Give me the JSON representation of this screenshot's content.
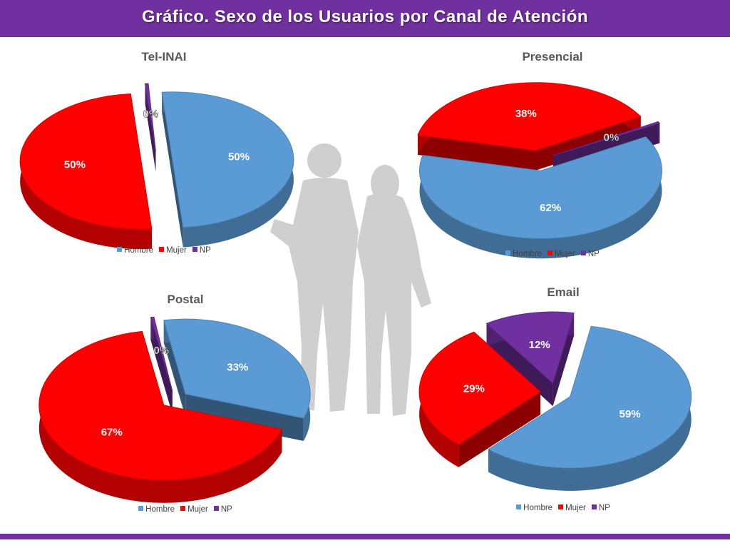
{
  "page": {
    "title": "Gráfico. Sexo de los Usuarios por Canal de Atención"
  },
  "colors": {
    "header": "#7030a0",
    "hombre": "#5b9bd5",
    "mujer": "#ff0000",
    "np": "#7030a0"
  },
  "chart_data": [
    {
      "type": "pie",
      "title": "Tel-INAI",
      "categories": [
        "Hombre",
        "Mujer",
        "NP"
      ],
      "values": [
        50,
        50,
        0
      ],
      "labels": [
        "50%",
        "50%",
        "0%"
      ],
      "legend": [
        "Hombre",
        "Mujer",
        "NP"
      ]
    },
    {
      "type": "pie",
      "title": "Presencial",
      "categories": [
        "Hombre",
        "Mujer",
        "NP"
      ],
      "values": [
        62,
        38,
        0
      ],
      "labels": [
        "62%",
        "38%",
        "0%"
      ],
      "legend": [
        "Hombre",
        "Mujer",
        "NP"
      ]
    },
    {
      "type": "pie",
      "title": "Postal",
      "categories": [
        "Hombre",
        "Mujer",
        "NP"
      ],
      "values": [
        33,
        67,
        0
      ],
      "labels": [
        "33%",
        "67%",
        "0%"
      ],
      "legend": [
        "Hombre",
        "Mujer",
        "NP"
      ]
    },
    {
      "type": "pie",
      "title": "Email",
      "categories": [
        "Hombre",
        "Mujer",
        "NP"
      ],
      "values": [
        59,
        29,
        12
      ],
      "labels": [
        "59%",
        "29%",
        "12%"
      ],
      "legend": [
        "Hombre",
        "Mujer",
        "NP"
      ]
    }
  ]
}
